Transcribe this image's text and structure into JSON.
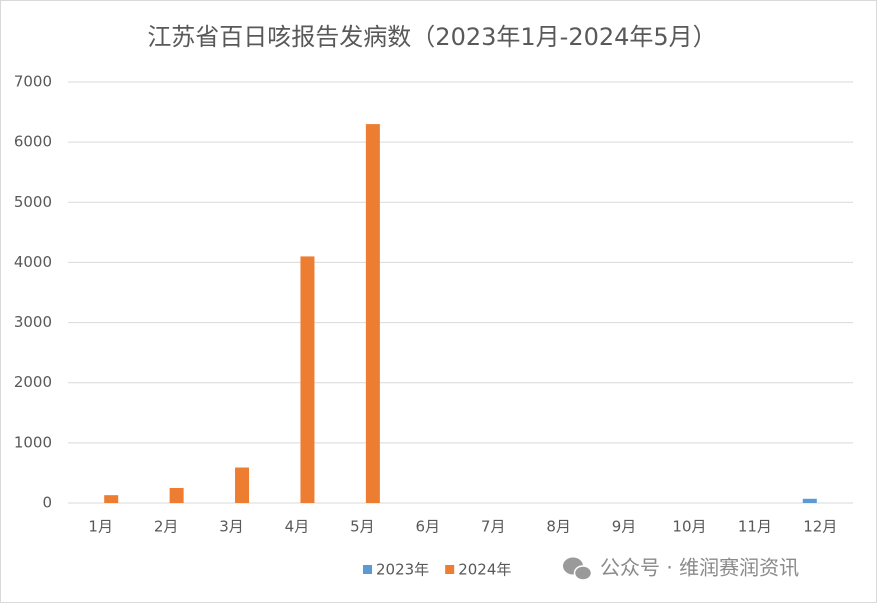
{
  "chart_data": {
    "type": "bar",
    "title": "江苏省百日咳报告发病数（2023年1月-2024年5月）",
    "categories": [
      "1月",
      "2月",
      "3月",
      "4月",
      "5月",
      "6月",
      "7月",
      "8月",
      "9月",
      "10月",
      "11月",
      "12月"
    ],
    "series": [
      {
        "name": "2023年",
        "color": "#5b9bd5",
        "values": [
          0,
          0,
          0,
          0,
          0,
          0,
          0,
          0,
          0,
          0,
          0,
          70
        ]
      },
      {
        "name": "2024年",
        "color": "#ed7d31",
        "values": [
          130,
          250,
          590,
          4100,
          6300,
          null,
          null,
          null,
          null,
          null,
          null,
          null
        ]
      }
    ],
    "ylim": [
      0,
      7000
    ],
    "yticks": [
      0,
      1000,
      2000,
      3000,
      4000,
      5000,
      6000,
      7000
    ],
    "grid": true,
    "legend": "bottom",
    "watermark": "公众号 · 维润赛润资讯"
  }
}
